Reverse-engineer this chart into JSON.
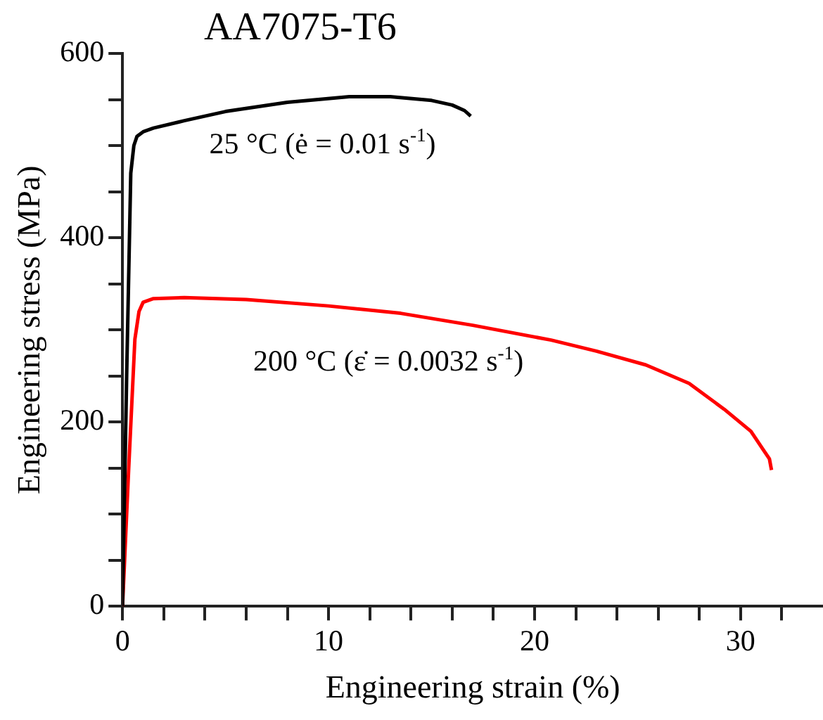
{
  "chart_data": {
    "type": "line",
    "title": "AA7075-T6",
    "xlabel": "Engineering strain (%)",
    "ylabel": "Engineering stress (MPa)",
    "xlim": [
      0,
      34
    ],
    "ylim": [
      0,
      600
    ],
    "xticks": [
      0,
      {
        "value": 2,
        "label": null
      },
      {
        "value": 4,
        "label": null
      },
      {
        "value": 6,
        "label": null
      },
      {
        "value": 8,
        "label": null
      },
      10,
      {
        "value": 12,
        "label": null
      },
      {
        "value": 14,
        "label": null
      },
      {
        "value": 16,
        "label": null
      },
      {
        "value": 18,
        "label": null
      },
      20,
      {
        "value": 22,
        "label": null
      },
      {
        "value": 24,
        "label": null
      },
      {
        "value": 26,
        "label": null
      },
      {
        "value": 28,
        "label": null
      },
      30,
      {
        "value": 32,
        "label": null
      }
    ],
    "yticks": [
      0,
      {
        "value": 50,
        "label": null
      },
      {
        "value": 100,
        "label": null
      },
      {
        "value": 150,
        "label": null
      },
      200,
      {
        "value": 250,
        "label": null
      },
      {
        "value": 300,
        "label": null
      },
      {
        "value": 350,
        "label": null
      },
      400,
      {
        "value": 450,
        "label": null
      },
      {
        "value": 500,
        "label": null
      },
      {
        "value": 550,
        "label": null
      },
      600
    ],
    "grid": false,
    "marker": "none",
    "line_style": "solid",
    "series": [
      {
        "name": "25 °C (ė = 0.01 s$^{-1}$)",
        "color": "#000000",
        "x": [
          0,
          0.2,
          0.4,
          0.55,
          0.7,
          1,
          1.5,
          3,
          5,
          8,
          11,
          13,
          15,
          16,
          16.6,
          16.9
        ],
        "values": [
          0,
          250,
          470,
          500,
          510,
          515,
          519,
          527,
          537,
          547,
          553,
          553,
          549,
          544,
          538,
          532
        ]
      },
      {
        "name": "200 °C (ε̇ = 0.0032 s$^{-1}$)",
        "color": "#ff0000",
        "x": [
          0,
          0.3,
          0.6,
          0.8,
          1,
          1.5,
          3,
          6,
          10,
          13.5,
          17,
          20.8,
          23,
          25.4,
          27.5,
          29.2,
          30.5,
          31.1,
          31.4,
          31.5
        ],
        "values": [
          0,
          150,
          290,
          320,
          330,
          334,
          335,
          333,
          326,
          318,
          305,
          289,
          277,
          262,
          242,
          214,
          190,
          170,
          160,
          148
        ]
      }
    ]
  }
}
